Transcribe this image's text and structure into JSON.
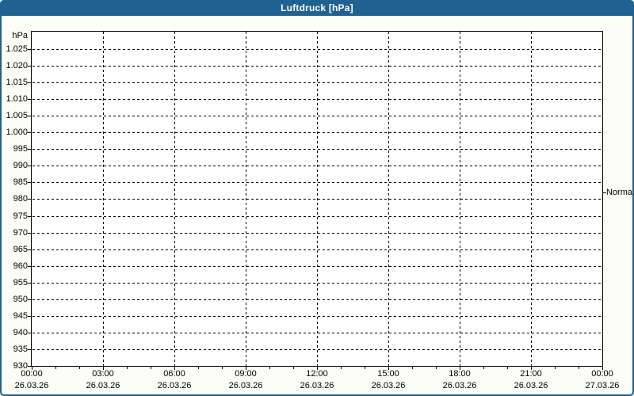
{
  "window": {
    "title": "Luftdruck [hPa]"
  },
  "colors": {
    "titlebar_bg": "#1f6190",
    "frame_border": "#1f6190",
    "title_text": "#ffffff",
    "outer_bg": "#fcfdf5",
    "plot_bg": "#ffffff",
    "grid": "#000000",
    "axis_text": "#000000"
  },
  "chart_data": {
    "type": "line",
    "title": "Luftdruck [hPa]",
    "series": [],
    "grid": "on",
    "y_axis": {
      "unit_label": "hPa",
      "min": 930,
      "max": 1030,
      "gridline_step": 5,
      "ticks": [
        {
          "value": 1025,
          "label": "1.025"
        },
        {
          "value": 1020,
          "label": "1.020"
        },
        {
          "value": 1015,
          "label": "1.015"
        },
        {
          "value": 1010,
          "label": "1.010"
        },
        {
          "value": 1005,
          "label": "1.005"
        },
        {
          "value": 1000,
          "label": "1.000"
        },
        {
          "value": 995,
          "label": "995"
        },
        {
          "value": 990,
          "label": "990"
        },
        {
          "value": 985,
          "label": "985"
        },
        {
          "value": 980,
          "label": "980"
        },
        {
          "value": 975,
          "label": "975"
        },
        {
          "value": 970,
          "label": "970"
        },
        {
          "value": 965,
          "label": "965"
        },
        {
          "value": 960,
          "label": "960"
        },
        {
          "value": 955,
          "label": "955"
        },
        {
          "value": 950,
          "label": "950"
        },
        {
          "value": 945,
          "label": "945"
        },
        {
          "value": 940,
          "label": "940"
        },
        {
          "value": 935,
          "label": "935"
        },
        {
          "value": 930,
          "label": "930"
        }
      ]
    },
    "x_axis": {
      "hours_span": 24,
      "minor_tick_every_hours": 1,
      "major_ticks": [
        {
          "hour": 0,
          "time": "00:00",
          "date": "26.03.26"
        },
        {
          "hour": 3,
          "time": "03:00",
          "date": "26.03.26"
        },
        {
          "hour": 6,
          "time": "06:00",
          "date": "26.03.26"
        },
        {
          "hour": 9,
          "time": "09:00",
          "date": "26.03.26"
        },
        {
          "hour": 12,
          "time": "12:00",
          "date": "26.03.26"
        },
        {
          "hour": 15,
          "time": "15:00",
          "date": "26.03.26"
        },
        {
          "hour": 18,
          "time": "18:00",
          "date": "26.03.26"
        },
        {
          "hour": 21,
          "time": "21:00",
          "date": "26.03.26"
        },
        {
          "hour": 24,
          "time": "00:00",
          "date": "27.03.26"
        }
      ]
    },
    "annotations": [
      {
        "label": "Normal",
        "value_hpa": 982,
        "side": "right"
      }
    ]
  }
}
